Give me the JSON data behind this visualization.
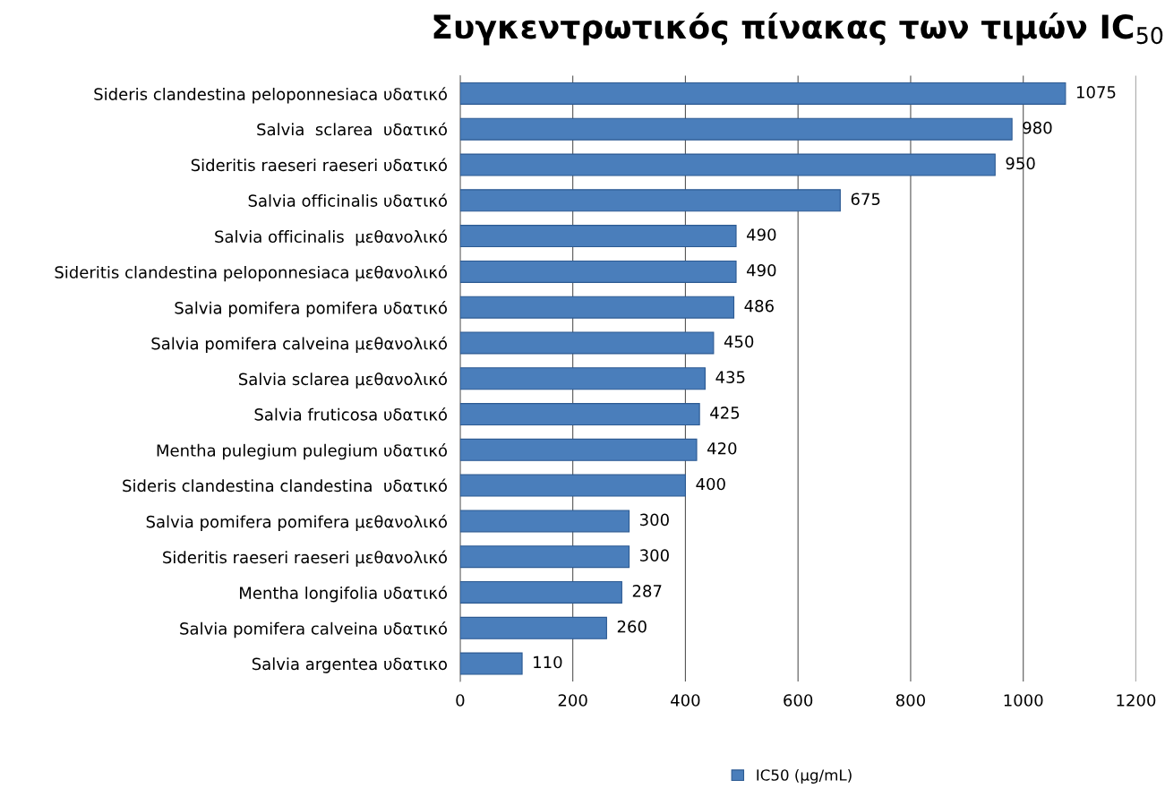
{
  "chart_data": {
    "type": "bar",
    "orientation": "horizontal",
    "title": "Συγκεντρωτικός πίνακας των τιμών IC$_{50}$",
    "categories": [
      "Sideris clandestina peloponnesiaca υδατικό",
      "Salvia  sclarea  υδατικό",
      "Sideritis raeseri raeseri υδατικό",
      "Salvia officinalis υδατικό",
      "Salvia officinalis  μεθανολικό",
      "Sideritis clandestina peloponnesiaca μεθανολικό",
      "Salvia pomifera pomifera υδατικό",
      "Salvia pomifera calveina μεθανολικό",
      "Salvia sclarea μεθανολικό",
      "Salvia fruticosa υδατικό",
      "Mentha pulegium pulegium υδατικό",
      "Sideris clandestina clandestina  υδατικό",
      "Salvia pomifera pomifera μεθανολικό",
      "Sideritis raeseri raeseri μεθανολικό",
      "Mentha longifolia υδατικό",
      "Salvia pomifera calveina υδατικό",
      "Salvia argentea υδατικο"
    ],
    "series": [
      {
        "name": "IC50 (µg/mL)",
        "color": "#4a7ebb",
        "values": [
          1075,
          980,
          950,
          675,
          490,
          490,
          486,
          450,
          435,
          425,
          420,
          400,
          300,
          300,
          287,
          260,
          110
        ]
      }
    ],
    "xlim": [
      0,
      1200
    ],
    "xticks": [
      0,
      200,
      400,
      600,
      800,
      1000,
      1200
    ],
    "grid": "x",
    "legend": "bottom",
    "data_labels": true
  }
}
